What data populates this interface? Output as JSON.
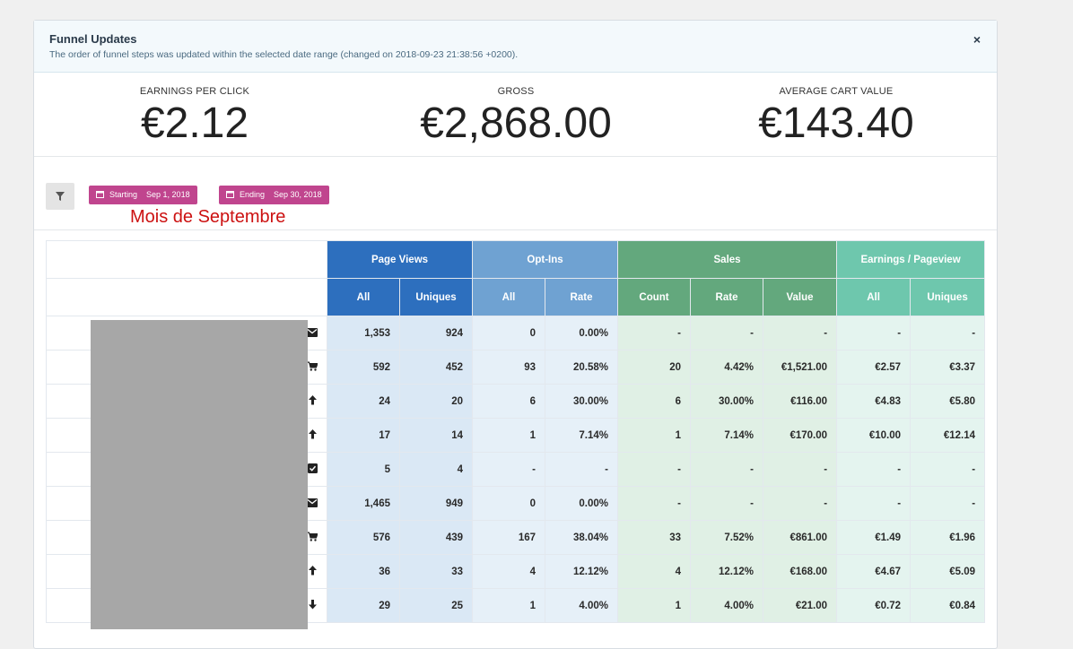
{
  "alert": {
    "title": "Funnel Updates",
    "text": "The order of funnel steps was updated within the selected date range (changed on 2018-09-23 21:38:56 +0200).",
    "close": "×"
  },
  "stats": [
    {
      "label": "EARNINGS PER CLICK",
      "value": "€2.12"
    },
    {
      "label": "GROSS",
      "value": "€2,868.00"
    },
    {
      "label": "AVERAGE CART VALUE",
      "value": "€143.40"
    }
  ],
  "filter_icon": "filter-icon",
  "date_range": {
    "start_label": "Starting",
    "start_date": "Sep 1, 2018",
    "end_label": "Ending",
    "end_date": "Sep 30, 2018"
  },
  "annotation": "Mois de Septembre",
  "colors": {
    "pink": "#c0458e",
    "page_views": "#2d6fbe",
    "opt_ins": "#6fa2d2",
    "sales": "#63a87d",
    "earnings": "#6ec7ad",
    "annotation": "#cc1111"
  },
  "table": {
    "groups": {
      "page_views": "Page Views",
      "opt_ins": "Opt-Ins",
      "sales": "Sales",
      "earnings": "Earnings / Pageview"
    },
    "columns": {
      "pv_all": "All",
      "pv_uniques": "Uniques",
      "opt_all": "All",
      "opt_rate": "Rate",
      "sales_count": "Count",
      "sales_rate": "Rate",
      "sales_value": "Value",
      "epv_all": "All",
      "epv_uniques": "Uniques"
    },
    "rows": [
      {
        "expand": ">",
        "icon": "envelope-icon",
        "pv_all": "1,353",
        "pv_uniques": "924",
        "opt_all": "0",
        "opt_rate": "0.00%",
        "count": "-",
        "rate": "-",
        "value": "-",
        "epv_all": "-",
        "epv_uniques": "-"
      },
      {
        "expand": ">",
        "icon": "cart-icon",
        "pv_all": "592",
        "pv_uniques": "452",
        "opt_all": "93",
        "opt_rate": "20.58%",
        "count": "20",
        "rate": "4.42%",
        "value": "€1,521.00",
        "epv_all": "€2.57",
        "epv_uniques": "€3.37"
      },
      {
        "expand": ">",
        "icon": "arrow-up-icon",
        "pv_all": "24",
        "pv_uniques": "20",
        "opt_all": "6",
        "opt_rate": "30.00%",
        "count": "6",
        "rate": "30.00%",
        "value": "€116.00",
        "epv_all": "€4.83",
        "epv_uniques": "€5.80"
      },
      {
        "expand": ">",
        "icon": "arrow-up-icon",
        "pv_all": "17",
        "pv_uniques": "14",
        "opt_all": "1",
        "opt_rate": "7.14%",
        "count": "1",
        "rate": "7.14%",
        "value": "€170.00",
        "epv_all": "€10.00",
        "epv_uniques": "€12.14"
      },
      {
        "expand": "",
        "icon": "checkbox-icon",
        "pv_all": "5",
        "pv_uniques": "4",
        "opt_all": "-",
        "opt_rate": "-",
        "count": "-",
        "rate": "-",
        "value": "-",
        "epv_all": "-",
        "epv_uniques": "-"
      },
      {
        "expand": ">",
        "icon": "envelope-icon",
        "pv_all": "1,465",
        "pv_uniques": "949",
        "opt_all": "0",
        "opt_rate": "0.00%",
        "count": "-",
        "rate": "-",
        "value": "-",
        "epv_all": "-",
        "epv_uniques": "-"
      },
      {
        "expand": ">",
        "icon": "cart-icon",
        "pv_all": "576",
        "pv_uniques": "439",
        "opt_all": "167",
        "opt_rate": "38.04%",
        "count": "33",
        "rate": "7.52%",
        "value": "€861.00",
        "epv_all": "€1.49",
        "epv_uniques": "€1.96"
      },
      {
        "expand": ">",
        "icon": "arrow-up-icon",
        "pv_all": "36",
        "pv_uniques": "33",
        "opt_all": "4",
        "opt_rate": "12.12%",
        "count": "4",
        "rate": "12.12%",
        "value": "€168.00",
        "epv_all": "€4.67",
        "epv_uniques": "€5.09"
      },
      {
        "expand": ">",
        "icon": "arrow-down-icon",
        "pv_all": "29",
        "pv_uniques": "25",
        "opt_all": "1",
        "opt_rate": "4.00%",
        "count": "1",
        "rate": "4.00%",
        "value": "€21.00",
        "epv_all": "€0.72",
        "epv_uniques": "€0.84"
      }
    ]
  }
}
